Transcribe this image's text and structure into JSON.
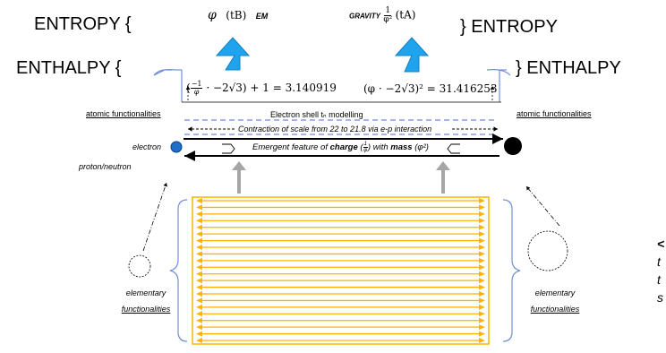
{
  "top_left": {
    "entropy": "ENTROPY {",
    "enthalpy": "ENTHALPY {"
  },
  "top_right": {
    "entropy": "} ENTROPY",
    "enthalpy": "} ENTHALPY"
  },
  "force_em": {
    "symbol": "φ",
    "time": "(tB)",
    "label": "EM"
  },
  "force_gravity": {
    "label": "GRAVITY",
    "frac_num": "1",
    "frac_den": "φ²",
    "time": "(tA)"
  },
  "equations": {
    "left": "(−1/φ · −2√3) + 1 = 3.140919",
    "left_lhs": "· −2√3) + 1 = 3.140919",
    "left_frac_num": "−1",
    "left_frac_den": "φ",
    "right": "(φ · −2√3)² = 31.416253"
  },
  "atomic_left": "atomic functionalities",
  "atomic_right": "atomic functionalities",
  "electron_shell": "Electron shell tₙ modelling",
  "contraction": "Contraction of scale from 22 to 21.8 via e-p interaction",
  "electron": "electron",
  "proton_neutron": "proton/neutron",
  "emergent": {
    "prefix": "Emergent feature of",
    "charge": "charge",
    "charge_frac_num": "1",
    "charge_frac_den": "φ",
    "with": "with",
    "mass": "mass",
    "mass_val": "(φ²)"
  },
  "elementary_left": [
    "elementary",
    "functionalities"
  ],
  "elementary_right": [
    "elementary",
    "functionalities"
  ],
  "right_cutoff": [
    "<",
    "t",
    "t",
    "s"
  ],
  "colors": {
    "arrow_blue": "#1fa3ec",
    "arrow_blue_border": "#1580c4",
    "orange": "#ffb300",
    "shell_dash": "#4a6fd0",
    "bracket_blue": "#6f8fd6",
    "gray_arrow": "#a6a6a6",
    "electron": "#1f6fc9",
    "nucleus": "#000000"
  },
  "lattice": {
    "rows": 22
  }
}
